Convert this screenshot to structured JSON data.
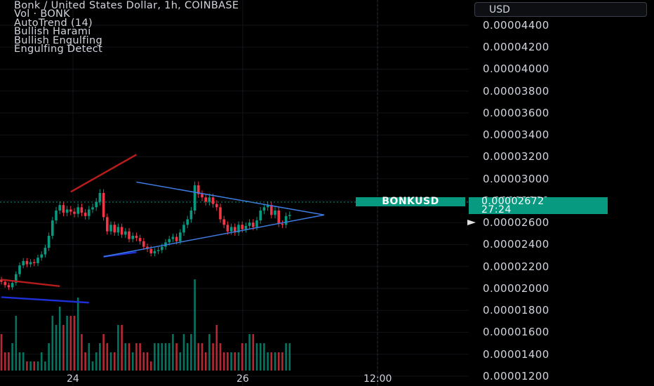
{
  "legend": {
    "title": "Bonk / United States Dollar, 1h, COINBASE",
    "indicators": [
      "Vol · BONK",
      "AutoTrend (14)",
      "Bullish Harami",
      "Bullish Engulfing",
      "Engulfing Detect"
    ]
  },
  "currency_button": "USD",
  "symbol_label": "BONKUSD",
  "last_price": "0.00002672",
  "countdown": "27:24",
  "colors": {
    "up": "#089981",
    "down": "#f23645",
    "trend_red": "#b71c1c",
    "trend_blue": "#1f2fd6",
    "triangle": "#3d7be0"
  },
  "chart_data": {
    "type": "candlestick",
    "symbol": "BONKUSD",
    "timeframe": "1h",
    "y_ticks": [
      "0.00001200",
      "0.00001400",
      "0.00001600",
      "0.00001800",
      "0.00002000",
      "0.00002200",
      "0.00002400",
      "0.00002600",
      "0.00002800",
      "0.00003000",
      "0.00003200",
      "0.00003400",
      "0.00003600",
      "0.00003800",
      "0.00004000",
      "0.00004200",
      "0.00004400"
    ],
    "x_ticks": [
      "24",
      "26",
      "12:00"
    ],
    "ylim": [
      1.11e-05,
      4.63e-05
    ],
    "close_series": [
      2.06e-05,
      2.03e-05,
      2.01e-05,
      2.05e-05,
      2.13e-05,
      2.21e-05,
      2.25e-05,
      2.22e-05,
      2.24e-05,
      2.23e-05,
      2.28e-05,
      2.31e-05,
      2.37e-05,
      2.48e-05,
      2.62e-05,
      2.71e-05,
      2.76e-05,
      2.69e-05,
      2.72e-05,
      2.7e-05,
      2.68e-05,
      2.74e-05,
      2.69e-05,
      2.66e-05,
      2.72e-05,
      2.74e-05,
      2.79e-05,
      2.87e-05,
      2.65e-05,
      2.52e-05,
      2.58e-05,
      2.51e-05,
      2.56e-05,
      2.49e-05,
      2.52e-05,
      2.45e-05,
      2.48e-05,
      2.46e-05,
      2.43e-05,
      2.38e-05,
      2.36e-05,
      2.32e-05,
      2.34e-05,
      2.35e-05,
      2.38e-05,
      2.42e-05,
      2.45e-05,
      2.47e-05,
      2.43e-05,
      2.51e-05,
      2.58e-05,
      2.63e-05,
      2.71e-05,
      2.94e-05,
      2.86e-05,
      2.83e-05,
      2.79e-05,
      2.83e-05,
      2.77e-05,
      2.74e-05,
      2.63e-05,
      2.58e-05,
      2.52e-05,
      2.56e-05,
      2.51e-05,
      2.58e-05,
      2.54e-05,
      2.57e-05,
      2.6e-05,
      2.56e-05,
      2.62e-05,
      2.71e-05,
      2.74e-05,
      2.76e-05,
      2.67e-05,
      2.71e-05,
      2.59e-05,
      2.58e-05,
      2.66e-05,
      2.67e-05
    ],
    "volume_series": [
      4,
      2,
      2,
      3,
      6,
      2,
      2,
      1,
      1,
      1,
      1,
      2,
      1,
      3,
      6,
      5,
      7,
      5,
      6,
      6,
      6,
      8,
      4,
      2,
      3,
      1,
      2,
      3,
      4,
      3,
      2,
      2,
      5,
      5,
      3,
      3,
      2,
      3,
      3,
      2,
      2,
      1,
      3,
      3,
      3,
      3,
      3,
      4,
      3,
      2,
      4,
      3,
      4,
      10,
      3,
      3,
      2,
      4,
      3,
      5,
      3,
      2,
      2,
      2,
      2,
      2,
      3,
      3,
      4,
      4,
      3,
      3,
      3,
      2,
      2,
      2,
      2,
      2,
      3,
      3
    ],
    "trendlines": [
      {
        "color": "red",
        "from": [
          0,
          2.08e-05
        ],
        "to": [
          16,
          2.02e-05
        ]
      },
      {
        "color": "blue",
        "from": [
          0,
          1.92e-05
        ],
        "to": [
          24,
          1.87e-05
        ]
      },
      {
        "color": "red",
        "from": [
          19,
          2.88e-05
        ],
        "to": [
          37,
          3.22e-05
        ]
      },
      {
        "color": "blue",
        "from": [
          28,
          2.29e-05
        ],
        "to": [
          37,
          2.33e-05
        ]
      },
      {
        "color": "triangle",
        "from": [
          37,
          2.97e-05
        ],
        "to": [
          61,
          2.67e-05
        ]
      },
      {
        "color": "triangle",
        "from": [
          28,
          2.29e-05
        ],
        "to": [
          61,
          2.67e-05
        ]
      }
    ]
  }
}
